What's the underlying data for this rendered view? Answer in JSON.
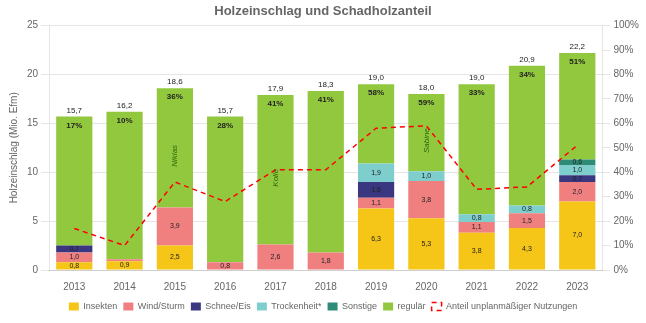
{
  "chart_data": {
    "type": "bar",
    "title": "Holzeinschlag und Schadholzanteil",
    "ylabel": "Holzeinschlag (Mio. Efm)",
    "categories": [
      "2013",
      "2014",
      "2015",
      "2016",
      "2017",
      "2018",
      "2019",
      "2020",
      "2021",
      "2022",
      "2023"
    ],
    "stacked": true,
    "grid": true,
    "legend": "bottom",
    "data_labels": true,
    "ylim": [
      0,
      25
    ],
    "yticks": [
      0,
      5,
      10,
      15,
      20,
      25
    ],
    "y2lim": [
      0,
      100
    ],
    "y2ticks": [
      {
        "value": 0,
        "label": "0%"
      },
      {
        "value": 10,
        "label": "10%"
      },
      {
        "value": 20,
        "label": "20%"
      },
      {
        "value": 30,
        "label": "30%"
      },
      {
        "value": 40,
        "label": "40%"
      },
      {
        "value": 50,
        "label": "50%"
      },
      {
        "value": 60,
        "label": "60%"
      },
      {
        "value": 70,
        "label": "70%"
      },
      {
        "value": 80,
        "label": "80%"
      },
      {
        "value": 90,
        "label": "90%"
      },
      {
        "value": 100,
        "label": "100%"
      }
    ],
    "series": [
      {
        "name": "Insekten",
        "color": "#F5C518",
        "values": [
          0.8,
          0.9,
          2.5,
          0.0,
          0.0,
          0.0,
          6.3,
          5.3,
          3.8,
          4.3,
          7.0
        ],
        "value_labels": [
          "0,8",
          "0,9",
          "2,5",
          null,
          null,
          null,
          "6,3",
          "5,3",
          "3,8",
          "4,3",
          "7,0"
        ]
      },
      {
        "name": "Wind/Sturm",
        "color": "#F08080",
        "values": [
          1.0,
          0.2,
          3.9,
          0.8,
          2.6,
          1.8,
          1.1,
          3.8,
          1.1,
          1.5,
          2.0
        ],
        "value_labels": [
          "1,0",
          null,
          "3,9",
          "0,8",
          "2,6",
          "1,8",
          "1,1",
          "3,8",
          "1,1",
          "1,5",
          "2,0"
        ]
      },
      {
        "name": "Schnee/Eis",
        "color": "#3B3680",
        "values": [
          0.7,
          0.0,
          0.0,
          0.0,
          0.0,
          0.0,
          1.6,
          0.0,
          0.0,
          0.0,
          0.7
        ],
        "value_labels": [
          "0,7",
          null,
          null,
          null,
          null,
          null,
          "1,6",
          null,
          null,
          null,
          "0,7"
        ]
      },
      {
        "name": "Trockenheit*",
        "color": "#7ECECE",
        "values": [
          0.0,
          0.0,
          0.0,
          0.0,
          0.0,
          0.0,
          1.9,
          1.0,
          0.8,
          0.8,
          1.0
        ],
        "value_labels": [
          null,
          null,
          null,
          null,
          null,
          null,
          "1,9",
          "1,0",
          "0,8",
          "0,8",
          "1,0"
        ]
      },
      {
        "name": "Sonstige",
        "color": "#2E8B77",
        "values": [
          0.0,
          0.0,
          0.0,
          0.0,
          0.0,
          0.0,
          0.0,
          0.0,
          0.0,
          0.0,
          0.6
        ],
        "value_labels": [
          null,
          null,
          null,
          null,
          null,
          null,
          null,
          null,
          null,
          null,
          "0,6"
        ]
      },
      {
        "name": "regulär",
        "color": "#92C83E",
        "values": [
          13.2,
          15.1,
          12.2,
          14.9,
          15.3,
          16.5,
          8.1,
          7.9,
          13.3,
          14.3,
          10.9
        ]
      },
      {
        "name": "Anteil unplanmäßiger Nutzungen",
        "type": "line",
        "axis": "y2",
        "color": "red",
        "line_style": "dashed",
        "marker": "none",
        "values": [
          17,
          10,
          36,
          28,
          41,
          41,
          58,
          59,
          33,
          34,
          51
        ],
        "value_labels": [
          "17%",
          "10%",
          "36%",
          "28%",
          "41%",
          "41%",
          "58%",
          "59%",
          "33%",
          "34%",
          "51%"
        ]
      }
    ],
    "stack_totals": {
      "values": [
        15.7,
        16.2,
        18.6,
        15.7,
        17.9,
        18.3,
        19.0,
        18.0,
        19.0,
        20.9,
        22.2
      ],
      "value_labels": [
        "15,7",
        "16,2",
        "18,6",
        "15,7",
        "17,9",
        "18,3",
        "19,0",
        "18,0",
        "19,0",
        "20,9",
        "22,2"
      ]
    },
    "annotations": [
      {
        "text": "Niklas",
        "x": "2015",
        "color": "#2d6a0a"
      },
      {
        "text": "Kolle",
        "x": "2017",
        "color": "#2d6a0a"
      },
      {
        "text": "Sabine",
        "x": "2020",
        "color": "#2d6a0a"
      }
    ]
  }
}
